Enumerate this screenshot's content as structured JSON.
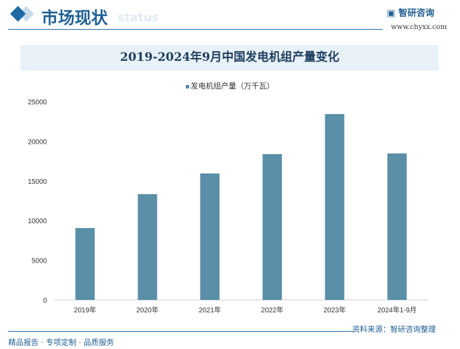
{
  "header": {
    "title": "市场现状",
    "subtitle": "status",
    "logo": "智研咨询",
    "url": "www.chyxx.com"
  },
  "footer": {
    "left": "精品报告 · 专项定制 · 品质服务",
    "source": "资料来源：智研咨询整理"
  },
  "colors": {
    "bar": "#5b8fa8",
    "accent": "#1f6aa5"
  },
  "chart_data": {
    "type": "bar",
    "title": "2019-2024年9月中国发电机组产量变化",
    "categories": [
      "2019年",
      "2020年",
      "2021年",
      "2022年",
      "2023年",
      "2024年1-9月"
    ],
    "series": [
      {
        "name": "发电机组产量（万千瓦）",
        "values": [
          9060,
          13330,
          15940,
          18380,
          23430,
          18470
        ]
      }
    ],
    "ylim": [
      0,
      25000
    ],
    "yticks": [
      0,
      5000,
      10000,
      15000,
      20000,
      25000
    ],
    "grid": false,
    "legend": "top"
  }
}
